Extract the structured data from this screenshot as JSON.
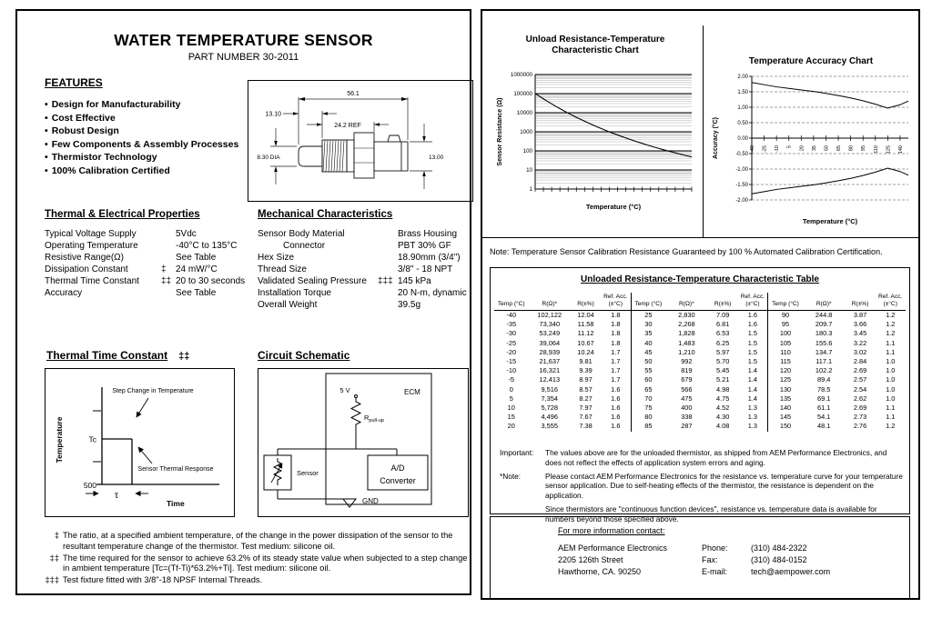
{
  "page_left": {
    "title": "WATER TEMPERATURE SENSOR",
    "subtitle": "PART NUMBER 30-2011",
    "features": {
      "heading": "FEATURES",
      "bullet": "•",
      "items": [
        "Design for Manufacturability",
        "Cost Effective",
        "Robust Design",
        "Few Components & Assembly Processes",
        "Thermistor Technology",
        "100% Calibration Certified"
      ]
    },
    "drawing": {
      "len_overall": "56.1",
      "len_tip": "13.10",
      "len_thread": "24.2 REF",
      "dia_tip": "8.30  DIA",
      "dia_conn": "13.00"
    },
    "thermal_props": {
      "heading": "Thermal & Electrical Properties",
      "rows": [
        {
          "label": "Typical Voltage Supply",
          "mark": "",
          "value": "5Vdc"
        },
        {
          "label": "Operating Temperature",
          "mark": "",
          "value": "-40°C to 135°C"
        },
        {
          "label": "Resistive Range(Ω)",
          "mark": "",
          "value": "See Table"
        },
        {
          "label": "Dissipation Constant",
          "mark": "‡",
          "value": "24 mW/°C"
        },
        {
          "label": "Thermal Time Constant",
          "mark": "‡‡",
          "value": "20 to 30 seconds"
        },
        {
          "label": "Accuracy",
          "mark": "",
          "value": "See Table"
        }
      ]
    },
    "mech_props": {
      "heading": "Mechanical Characteristics",
      "rows": [
        {
          "label": "Sensor Body Material",
          "mark": "",
          "value": "Brass Housing"
        },
        {
          "label": "Connector",
          "indent": true,
          "mark": "",
          "value": "PBT 30% GF"
        },
        {
          "label": "Hex Size",
          "mark": "",
          "value": "18.90mm (3/4\")"
        },
        {
          "label": "Thread Size",
          "mark": "",
          "value": "3/8\" - 18 NPT"
        },
        {
          "label": "Validated Sealing Pressure",
          "mark": "‡‡‡",
          "value": "145 kPa"
        },
        {
          "label": "Installation Torque",
          "mark": "",
          "value": "20 N-m, dynamic"
        },
        {
          "label": "Overall Weight",
          "mark": "",
          "value": "39.5g"
        }
      ]
    },
    "ttc_chart": {
      "heading": "Thermal Time Constant",
      "mark": "‡‡",
      "ylabel": "Temperature",
      "xlabel": "Time",
      "tc": "Tc",
      "baseline": "500",
      "tau": "τ",
      "ann_step": "Step Change in Temperature",
      "ann_response": "Sensor Thermal Response"
    },
    "schematic": {
      "heading": "Circuit Schematic",
      "ecm": "ECM",
      "vcc": "5 V",
      "r_main": "R",
      "r_sub": "pull-up",
      "adc_line1": "A/D",
      "adc_line2": "Converter",
      "sensor": "Sensor",
      "gnd": "GND"
    },
    "footnotes": [
      {
        "mark": "‡",
        "text": "The ratio, at a specified ambient temperature, of the change in the power dissipation of the sensor to the resultant temperature change of the thermistor.  Test medium: silicone oil."
      },
      {
        "mark": "‡‡",
        "text": "The time required for the sensor to achieve 63.2% of its steady state value when subjected to a step change in ambient temperature [Tc=(Tf-Ti)*63.2%+Ti].  Test medium: silicone oil."
      },
      {
        "mark": "‡‡‡",
        "text": "Test fixture fitted with 3/8\"-18 NPSF Internal Threads."
      }
    ]
  },
  "page_right": {
    "cal_note": "Note: Temperature Sensor Calibration Resistance Guaranteed by 100 % Automated Calibration Certification.",
    "table": {
      "title": "Unloaded Resistance-Temperature Characteristic Table",
      "col_headers": [
        "Temp (°C)",
        "R(Ω)*",
        "R(±%)",
        "Ref. Acc. (±°C)"
      ],
      "groups": [
        [
          [
            "-40",
            "102,122",
            "12.04",
            "1.8"
          ],
          [
            "-35",
            "73,340",
            "11.58",
            "1.8"
          ],
          [
            "-30",
            "53,249",
            "11.12",
            "1.8"
          ],
          [
            "-25",
            "39,064",
            "10.67",
            "1.8"
          ],
          [
            "-20",
            "28,939",
            "10.24",
            "1.7"
          ],
          [
            "-15",
            "21,637",
            "9.81",
            "1.7"
          ],
          [
            "-10",
            "16,321",
            "9.39",
            "1.7"
          ],
          [
            "-5",
            "12,413",
            "8.97",
            "1.7"
          ],
          [
            "0",
            "9,516",
            "8.57",
            "1.6"
          ],
          [
            "5",
            "7,354",
            "8.27",
            "1.6"
          ],
          [
            "10",
            "5,728",
            "7.97",
            "1.6"
          ],
          [
            "15",
            "4,496",
            "7.67",
            "1.6"
          ],
          [
            "20",
            "3,555",
            "7.38",
            "1.6"
          ]
        ],
        [
          [
            "25",
            "2,830",
            "7.09",
            "1.6"
          ],
          [
            "30",
            "2,268",
            "6.81",
            "1.6"
          ],
          [
            "35",
            "1,828",
            "6.53",
            "1.5"
          ],
          [
            "40",
            "1,483",
            "6.25",
            "1.5"
          ],
          [
            "45",
            "1,210",
            "5.97",
            "1.5"
          ],
          [
            "50",
            "992",
            "5.70",
            "1.5"
          ],
          [
            "55",
            "819",
            "5.45",
            "1.4"
          ],
          [
            "60",
            "679",
            "5.21",
            "1.4"
          ],
          [
            "65",
            "566",
            "4.98",
            "1.4"
          ],
          [
            "70",
            "475",
            "4.75",
            "1.4"
          ],
          [
            "75",
            "400",
            "4.52",
            "1.3"
          ],
          [
            "80",
            "338",
            "4.30",
            "1.3"
          ],
          [
            "85",
            "287",
            "4.08",
            "1.3"
          ]
        ],
        [
          [
            "90",
            "244.8",
            "3.87",
            "1.2"
          ],
          [
            "95",
            "209.7",
            "3.66",
            "1.2"
          ],
          [
            "100",
            "180.3",
            "3.45",
            "1.2"
          ],
          [
            "105",
            "155.6",
            "3.22",
            "1.1"
          ],
          [
            "110",
            "134.7",
            "3.02",
            "1.1"
          ],
          [
            "115",
            "117.1",
            "2.84",
            "1.0"
          ],
          [
            "120",
            "102.2",
            "2.69",
            "1.0"
          ],
          [
            "125",
            "89.4",
            "2.57",
            "1.0"
          ],
          [
            "130",
            "78.5",
            "2.54",
            "1.0"
          ],
          [
            "135",
            "69.1",
            "2.62",
            "1.0"
          ],
          [
            "140",
            "61.1",
            "2.69",
            "1.1"
          ],
          [
            "145",
            "54.1",
            "2.73",
            "1.1"
          ],
          [
            "150",
            "48.1",
            "2.76",
            "1.2"
          ]
        ]
      ]
    },
    "notes": {
      "important_label": "Important:",
      "important_text": "The values above are for the unloaded thermistor, as shipped from AEM Performance Electronics, and does not reflect the effects of application system errors and aging.",
      "note_label": "*Note:",
      "note_text1": "Please contact AEM Performance Electronics for the resistance vs. temperature curve for your temperature sensor application. Due to self-heating effects of the thermistor, the resistance is dependent on the application.",
      "note_text2": "Since thermistors are \"continuous function devices\", resistance vs. temperature data is available for numbers beyond those specified above."
    },
    "contact": {
      "heading": "For more information contact:",
      "company": "AEM Performance Electronics",
      "street": "2205 126th Street",
      "city": "Hawthorne, CA. 90250",
      "phone_label": "Phone:",
      "phone": "(310) 484-2322",
      "fax_label": "Fax:",
      "fax": "(310) 484-0152",
      "email_label": "E-mail:",
      "email": "tech@aempower.com"
    }
  },
  "chart_data": [
    {
      "type": "line",
      "title": "Unload Resistance-Temperature Characteristic Chart",
      "xlabel": "Temperature (°C)",
      "ylabel": "Sensor Resistance (Ω)",
      "y_scale": "log",
      "ylim": [
        1,
        1000000
      ],
      "y_ticks": [
        "1",
        "10",
        "100",
        "1000",
        "10000",
        "100000",
        "1000000"
      ],
      "xlim": [
        -40,
        150
      ],
      "x_tick_step": 10,
      "grid": "log-minor",
      "x": [
        -40,
        -35,
        -30,
        -25,
        -20,
        -15,
        -10,
        -5,
        0,
        5,
        10,
        15,
        20,
        25,
        30,
        35,
        40,
        45,
        50,
        55,
        60,
        65,
        70,
        75,
        80,
        85,
        90,
        95,
        100,
        105,
        110,
        115,
        120,
        125,
        130,
        135,
        140,
        145,
        150
      ],
      "values": [
        102122,
        73340,
        53249,
        39064,
        28939,
        21637,
        16321,
        12413,
        9516,
        7354,
        5728,
        4496,
        3555,
        2830,
        2268,
        1828,
        1483,
        1210,
        992,
        819,
        679,
        566,
        475,
        400,
        338,
        287,
        244.8,
        209.7,
        180.3,
        155.6,
        134.7,
        117.1,
        102.2,
        89.4,
        78.5,
        69.1,
        61.1,
        54.1,
        48.1
      ]
    },
    {
      "type": "line",
      "title": "Temperature Accuracy Chart",
      "xlabel": "Temperature (°C)",
      "ylabel": "Accuracy (°C)",
      "ylim": [
        -2,
        2
      ],
      "y_tick_step": 0.5,
      "xlim": [
        -40,
        150
      ],
      "x_ticks": [
        -40,
        -25,
        -10,
        5,
        20,
        35,
        50,
        65,
        80,
        95,
        110,
        125,
        140
      ],
      "grid": "dashed",
      "x": [
        -40,
        -25,
        -10,
        5,
        20,
        35,
        50,
        65,
        80,
        95,
        110,
        125,
        140,
        150
      ],
      "series": [
        {
          "name": "upper accuracy limit",
          "values": [
            1.8,
            1.73,
            1.66,
            1.61,
            1.56,
            1.51,
            1.45,
            1.38,
            1.3,
            1.21,
            1.1,
            0.97,
            1.08,
            1.2
          ]
        },
        {
          "name": "lower accuracy limit",
          "values": [
            -1.8,
            -1.73,
            -1.66,
            -1.61,
            -1.56,
            -1.51,
            -1.45,
            -1.38,
            -1.3,
            -1.21,
            -1.1,
            -0.97,
            -1.08,
            -1.2
          ]
        }
      ]
    }
  ]
}
